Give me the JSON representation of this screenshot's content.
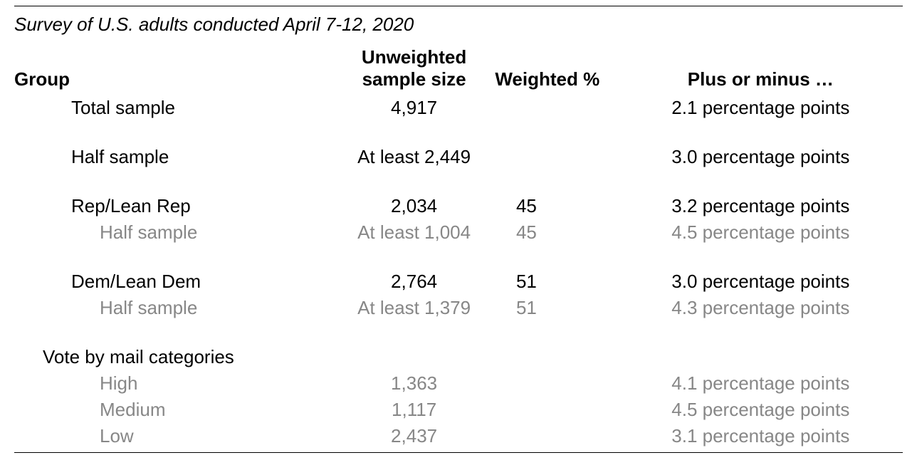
{
  "caption": "Survey of U.S. adults conducted April 7-12, 2020",
  "headers": {
    "group": "Group",
    "size_line1": "Unweighted",
    "size_line2": "sample size",
    "weighted": "Weighted %",
    "plusminus": "Plus or minus …"
  },
  "rows": {
    "total": {
      "label": "Total sample",
      "size": "4,917",
      "wt": "",
      "pm": "2.1 percentage points"
    },
    "half": {
      "label": "Half sample",
      "size": "At least 2,449",
      "wt": "",
      "pm": "3.0 percentage points"
    },
    "rep": {
      "label": "Rep/Lean Rep",
      "size": "2,034",
      "wt": "45",
      "pm": "3.2 percentage points"
    },
    "rep_half": {
      "label": "Half sample",
      "size": "At least 1,004",
      "wt": "45",
      "pm": "4.5 percentage points"
    },
    "dem": {
      "label": "Dem/Lean Dem",
      "size": "2,764",
      "wt": "51",
      "pm": "3.0 percentage points"
    },
    "dem_half": {
      "label": "Half sample",
      "size": "At least 1,379",
      "wt": "51",
      "pm": "4.3 percentage points"
    },
    "vbm_header": {
      "label": "Vote by mail categories"
    },
    "vbm_high": {
      "label": "High",
      "size": "1,363",
      "wt": "",
      "pm": "4.1 percentage points"
    },
    "vbm_med": {
      "label": "Medium",
      "size": "1,117",
      "wt": "",
      "pm": "4.5 percentage points"
    },
    "vbm_low": {
      "label": "Low",
      "size": "2,437",
      "wt": "",
      "pm": "3.1 percentage points"
    }
  },
  "style": {
    "text_color": "#000000",
    "muted_color": "#878787",
    "background": "#ffffff",
    "font_family": "Arial, Helvetica, sans-serif",
    "caption_fontsize_pt": 20,
    "body_fontsize_pt": 20,
    "border_color": "#000000"
  }
}
